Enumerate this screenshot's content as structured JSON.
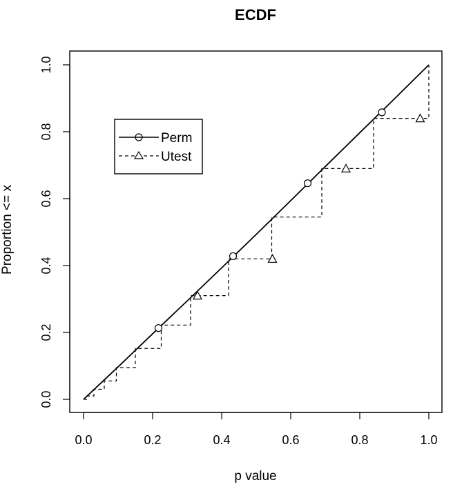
{
  "chart_data": {
    "type": "line",
    "title": "ECDF",
    "xlabel": "p value",
    "ylabel": "Proportion <= x",
    "xlim": [
      0,
      1
    ],
    "ylim": [
      0,
      1
    ],
    "x_ticks": [
      0.0,
      0.2,
      0.4,
      0.6,
      0.8,
      1.0
    ],
    "y_ticks": [
      0.0,
      0.2,
      0.4,
      0.6,
      0.8,
      1.0
    ],
    "x_tick_labels": [
      "0.0",
      "0.2",
      "0.4",
      "0.6",
      "0.8",
      "1.0"
    ],
    "y_tick_labels": [
      "0.0",
      "0.2",
      "0.4",
      "0.6",
      "0.8",
      "1.0"
    ],
    "grid": false,
    "legend_position": "upper-left",
    "series": [
      {
        "name": "Perm",
        "line_style": "solid",
        "marker": "circle",
        "color": "#000000",
        "x": [
          0.0,
          0.1,
          0.2,
          0.3,
          0.4,
          0.5,
          0.6,
          0.7,
          0.8,
          0.9,
          1.0
        ],
        "y": [
          0.0,
          0.097,
          0.196,
          0.294,
          0.393,
          0.493,
          0.594,
          0.696,
          0.797,
          0.898,
          1.0
        ],
        "markers": [
          {
            "x": 0.217,
            "y": 0.213
          },
          {
            "x": 0.433,
            "y": 0.428
          },
          {
            "x": 0.649,
            "y": 0.646
          },
          {
            "x": 0.864,
            "y": 0.858
          }
        ]
      },
      {
        "name": "Utest",
        "line_style": "dashed",
        "marker": "triangle",
        "color": "#000000",
        "step_x": [
          0.0,
          0.01,
          0.03,
          0.06,
          0.095,
          0.15,
          0.225,
          0.31,
          0.42,
          0.545,
          0.69,
          0.84,
          1.0
        ],
        "step_y": [
          0.0,
          0.01,
          0.03,
          0.055,
          0.095,
          0.152,
          0.222,
          0.31,
          0.42,
          0.545,
          0.69,
          0.84,
          1.0
        ],
        "markers": [
          {
            "x": 0.33,
            "y": 0.31
          },
          {
            "x": 0.547,
            "y": 0.42
          },
          {
            "x": 0.76,
            "y": 0.69
          },
          {
            "x": 0.975,
            "y": 0.84
          }
        ]
      }
    ]
  }
}
